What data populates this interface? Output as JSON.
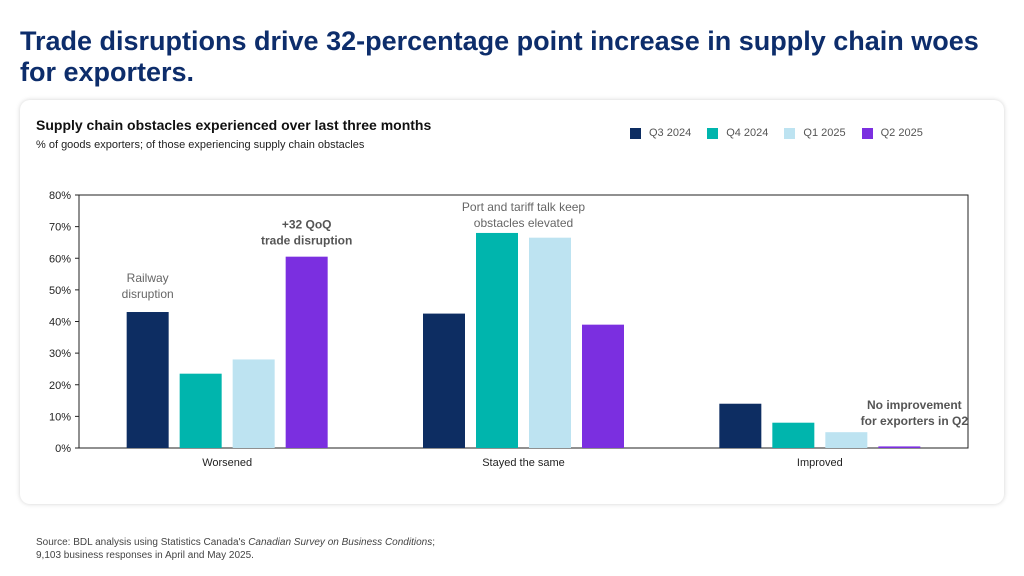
{
  "headline": "Trade disruptions drive 32-percentage point increase in supply chain woes for exporters.",
  "chart_data": {
    "type": "bar",
    "title": "Supply chain obstacles experienced over last three months",
    "subtitle": "% of goods exporters; of those experiencing supply chain obstacles",
    "categories": [
      "Worsened",
      "Stayed the same",
      "Improved"
    ],
    "series": [
      {
        "name": "Q3 2024",
        "color": "#0d2d62",
        "values": [
          43,
          42.5,
          14
        ]
      },
      {
        "name": "Q4 2024",
        "color": "#00b5ad",
        "values": [
          23.5,
          68,
          8
        ]
      },
      {
        "name": "Q1 2025",
        "color": "#bde3f1",
        "values": [
          28,
          66.5,
          5
        ]
      },
      {
        "name": "Q2 2025",
        "color": "#7b2fe0",
        "values": [
          60.5,
          39,
          0.5
        ]
      }
    ],
    "ylim": [
      0,
      80
    ],
    "yticks": [
      "0%",
      "10%",
      "20%",
      "30%",
      "40%",
      "50%",
      "60%",
      "70%",
      "80%"
    ],
    "legend_position": "top-right",
    "grid": false,
    "annotations": {
      "railway": "Railway\ndisruption",
      "trade": "+32 QoQ\ntrade disruption",
      "port": "Port and tariff talk keep\nobstacles elevated",
      "improve": "No improvement\nfor exporters in Q2"
    }
  },
  "source": {
    "prefix": "Source: BDL analysis using Statistics Canada's ",
    "survey": "Canadian Survey on Business Conditions",
    "suffix": ";",
    "line2": "9,103 business responses in April and May 2025."
  }
}
